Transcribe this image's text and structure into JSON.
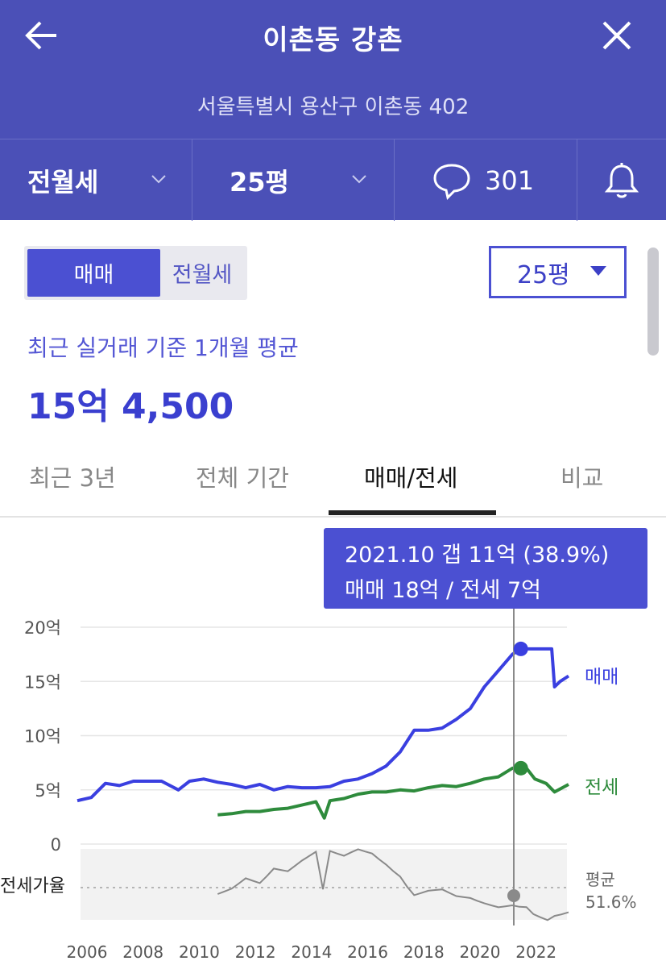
{
  "header": {
    "title": "이촌동 강촌",
    "address": "서울특별시 용산구 이촌동 402",
    "trade_type": "전월세",
    "area": "25평",
    "comment_count": "301"
  },
  "controls": {
    "toggle_sale": "매매",
    "toggle_rent": "전월세",
    "size_select": "25평"
  },
  "summary": {
    "caption": "최근 실거래 기준 1개월 평균",
    "price": "15억 4,500"
  },
  "tabs": [
    "최근 3년",
    "전체 기간",
    "매매/전세",
    "비교"
  ],
  "tooltip": {
    "line1": "2021.10  갭 11억 (38.9%)",
    "line2": "매매 18억 / 전세 7억"
  },
  "chart_data": {
    "type": "line",
    "x_ticks": [
      "2006",
      "2008",
      "2010",
      "2012",
      "2014",
      "2016",
      "2018",
      "2020",
      "2022"
    ],
    "y_ticks": [
      "20억",
      "15억",
      "10억",
      "5억",
      "0"
    ],
    "ylim": [
      0,
      20
    ],
    "series": [
      {
        "name": "매매",
        "color": "#3a3fe0",
        "points": [
          [
            2006.0,
            4.0
          ],
          [
            2006.5,
            4.3
          ],
          [
            2007.0,
            5.6
          ],
          [
            2007.5,
            5.4
          ],
          [
            2008.0,
            5.8
          ],
          [
            2009.0,
            5.8
          ],
          [
            2009.6,
            5.0
          ],
          [
            2010.0,
            5.8
          ],
          [
            2010.5,
            6.0
          ],
          [
            2011.0,
            5.7
          ],
          [
            2011.5,
            5.5
          ],
          [
            2012.0,
            5.2
          ],
          [
            2012.5,
            5.5
          ],
          [
            2013.0,
            5.0
          ],
          [
            2013.5,
            5.3
          ],
          [
            2014.0,
            5.2
          ],
          [
            2014.5,
            5.2
          ],
          [
            2015.0,
            5.3
          ],
          [
            2015.5,
            5.8
          ],
          [
            2016.0,
            6.0
          ],
          [
            2016.5,
            6.5
          ],
          [
            2017.0,
            7.2
          ],
          [
            2017.5,
            8.5
          ],
          [
            2018.0,
            10.5
          ],
          [
            2018.5,
            10.5
          ],
          [
            2019.0,
            10.7
          ],
          [
            2019.5,
            11.5
          ],
          [
            2020.0,
            12.5
          ],
          [
            2020.5,
            14.5
          ],
          [
            2021.0,
            16.0
          ],
          [
            2021.5,
            17.5
          ],
          [
            2021.8,
            18.0
          ],
          [
            2022.5,
            18.0
          ],
          [
            2022.9,
            18.0
          ],
          [
            2023.0,
            14.5
          ],
          [
            2023.2,
            15.0
          ],
          [
            2023.5,
            15.5
          ]
        ]
      },
      {
        "name": "전세",
        "color": "#2e8b3c",
        "points": [
          [
            2011.0,
            2.7
          ],
          [
            2011.5,
            2.8
          ],
          [
            2012.0,
            3.0
          ],
          [
            2012.5,
            3.0
          ],
          [
            2013.0,
            3.2
          ],
          [
            2013.5,
            3.3
          ],
          [
            2014.0,
            3.6
          ],
          [
            2014.5,
            3.9
          ],
          [
            2014.8,
            2.4
          ],
          [
            2015.0,
            4.0
          ],
          [
            2015.5,
            4.2
          ],
          [
            2016.0,
            4.6
          ],
          [
            2016.5,
            4.8
          ],
          [
            2017.0,
            4.8
          ],
          [
            2017.5,
            5.0
          ],
          [
            2018.0,
            4.9
          ],
          [
            2018.5,
            5.2
          ],
          [
            2019.0,
            5.4
          ],
          [
            2019.5,
            5.3
          ],
          [
            2020.0,
            5.6
          ],
          [
            2020.5,
            6.0
          ],
          [
            2021.0,
            6.2
          ],
          [
            2021.5,
            7.0
          ],
          [
            2021.8,
            7.0
          ],
          [
            2022.0,
            7.0
          ],
          [
            2022.3,
            6.0
          ],
          [
            2022.7,
            5.6
          ],
          [
            2023.0,
            4.8
          ],
          [
            2023.5,
            5.5
          ]
        ]
      }
    ],
    "secondary": {
      "label": "전세가율",
      "average_label": "평균",
      "average_value": "51.6%",
      "color": "#8a8a8a"
    },
    "highlight": {
      "date": "2021.10",
      "x": 2021.8
    },
    "legend": [
      "매매",
      "전세"
    ]
  }
}
